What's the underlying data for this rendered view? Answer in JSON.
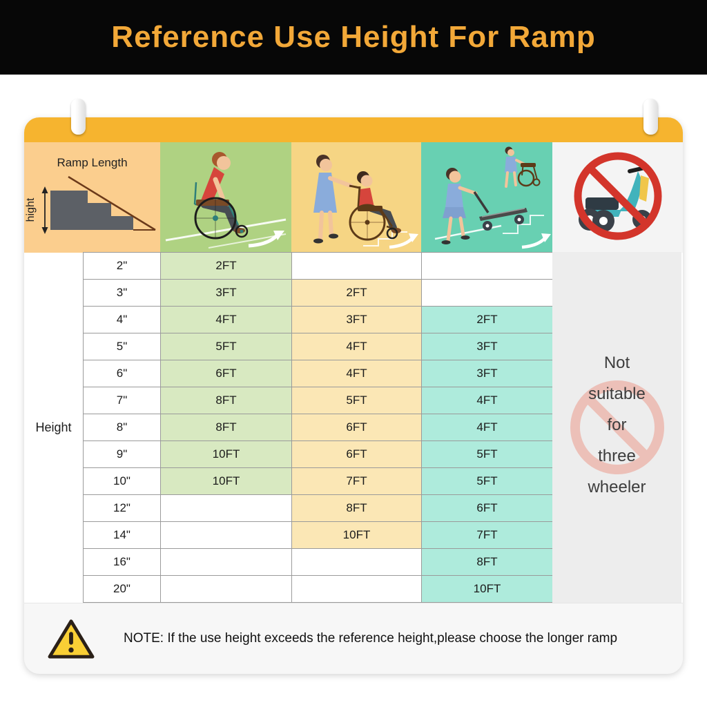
{
  "banner": {
    "title": "Reference Use Height For Ramp"
  },
  "header": {
    "ramp_length_label": "Ramp Length",
    "height_axis_label": "hight",
    "columns": [
      {
        "id": "ramp-diagram",
        "icon": "stairs-ramp-diagram-icon"
      },
      {
        "id": "self",
        "icon": "wheelchair-self-icon"
      },
      {
        "id": "assisted",
        "icon": "caregiver-pushing-wheelchair-icon"
      },
      {
        "id": "cargo",
        "icon": "person-pushing-hand-truck-icon"
      },
      {
        "id": "scooter",
        "icon": "no-scooter-icon"
      }
    ]
  },
  "table": {
    "row_label": "Height",
    "rows": [
      {
        "height": "2\"",
        "self": "2FT",
        "assisted": "",
        "cargo": ""
      },
      {
        "height": "3\"",
        "self": "3FT",
        "assisted": "2FT",
        "cargo": ""
      },
      {
        "height": "4\"",
        "self": "4FT",
        "assisted": "3FT",
        "cargo": "2FT"
      },
      {
        "height": "5\"",
        "self": "5FT",
        "assisted": "4FT",
        "cargo": "3FT"
      },
      {
        "height": "6\"",
        "self": "6FT",
        "assisted": "4FT",
        "cargo": "3FT"
      },
      {
        "height": "7\"",
        "self": "8FT",
        "assisted": "5FT",
        "cargo": "4FT"
      },
      {
        "height": "8\"",
        "self": "8FT",
        "assisted": "6FT",
        "cargo": "4FT"
      },
      {
        "height": "9\"",
        "self": "10FT",
        "assisted": "6FT",
        "cargo": "5FT"
      },
      {
        "height": "10\"",
        "self": "10FT",
        "assisted": "7FT",
        "cargo": "5FT"
      },
      {
        "height": "12\"",
        "self": "",
        "assisted": "8FT",
        "cargo": "6FT"
      },
      {
        "height": "14\"",
        "self": "",
        "assisted": "10FT",
        "cargo": "7FT"
      },
      {
        "height": "16\"",
        "self": "",
        "assisted": "",
        "cargo": "8FT"
      },
      {
        "height": "20\"",
        "self": "",
        "assisted": "",
        "cargo": "10FT"
      }
    ]
  },
  "not_suitable": {
    "lines": [
      "Not",
      "suitable",
      "for",
      "three",
      "wheeler"
    ]
  },
  "note": {
    "text": "NOTE: If the use height exceeds the reference height,please choose the longer ramp"
  },
  "colors": {
    "banner_bg": "#070707",
    "title": "#F2A838",
    "card_strip": "#F6B42F",
    "ramp_header_bg": "#FBCE8E",
    "self_header_bg": "#AFD282",
    "assisted_header_bg": "#F6D584",
    "cargo_header_bg": "#68D0B2",
    "scooter_header_bg": "#F4F4F4",
    "self_cell_bg": "#D8E9C1",
    "assisted_cell_bg": "#FBE7B5",
    "cargo_cell_bg": "#AEEBDC",
    "right_panel_bg": "#EDEDED",
    "note_bg": "#F7F7F7",
    "grid_line": "#9a9a9a",
    "ban_red": "#D3352B",
    "ban_faded_pink": "#ECC0B8",
    "warning_yellow": "#F9CF35"
  },
  "chart_data": {
    "type": "table",
    "title": "Reference Use Height For Ramp",
    "columns": [
      "Height (use height)",
      "Wheelchair self-propelled ramp length",
      "Wheelchair pushed by caregiver ramp length",
      "Hand truck / cargo ramp length"
    ],
    "rows": [
      [
        "2\"",
        "2FT",
        "",
        ""
      ],
      [
        "3\"",
        "3FT",
        "2FT",
        ""
      ],
      [
        "4\"",
        "4FT",
        "3FT",
        "2FT"
      ],
      [
        "5\"",
        "5FT",
        "4FT",
        "3FT"
      ],
      [
        "6\"",
        "6FT",
        "4FT",
        "3FT"
      ],
      [
        "7\"",
        "8FT",
        "5FT",
        "4FT"
      ],
      [
        "8\"",
        "8FT",
        "6FT",
        "4FT"
      ],
      [
        "9\"",
        "10FT",
        "6FT",
        "5FT"
      ],
      [
        "10\"",
        "10FT",
        "7FT",
        "5FT"
      ],
      [
        "12\"",
        "",
        "8FT",
        "6FT"
      ],
      [
        "14\"",
        "",
        "10FT",
        "7FT"
      ],
      [
        "16\"",
        "",
        "",
        "8FT"
      ],
      [
        "20\"",
        "",
        "",
        "10FT"
      ]
    ],
    "scooter_column_note": "Not suitable for three wheeler",
    "footnote": "NOTE: If the use height exceeds the reference height,please choose the longer ramp"
  }
}
